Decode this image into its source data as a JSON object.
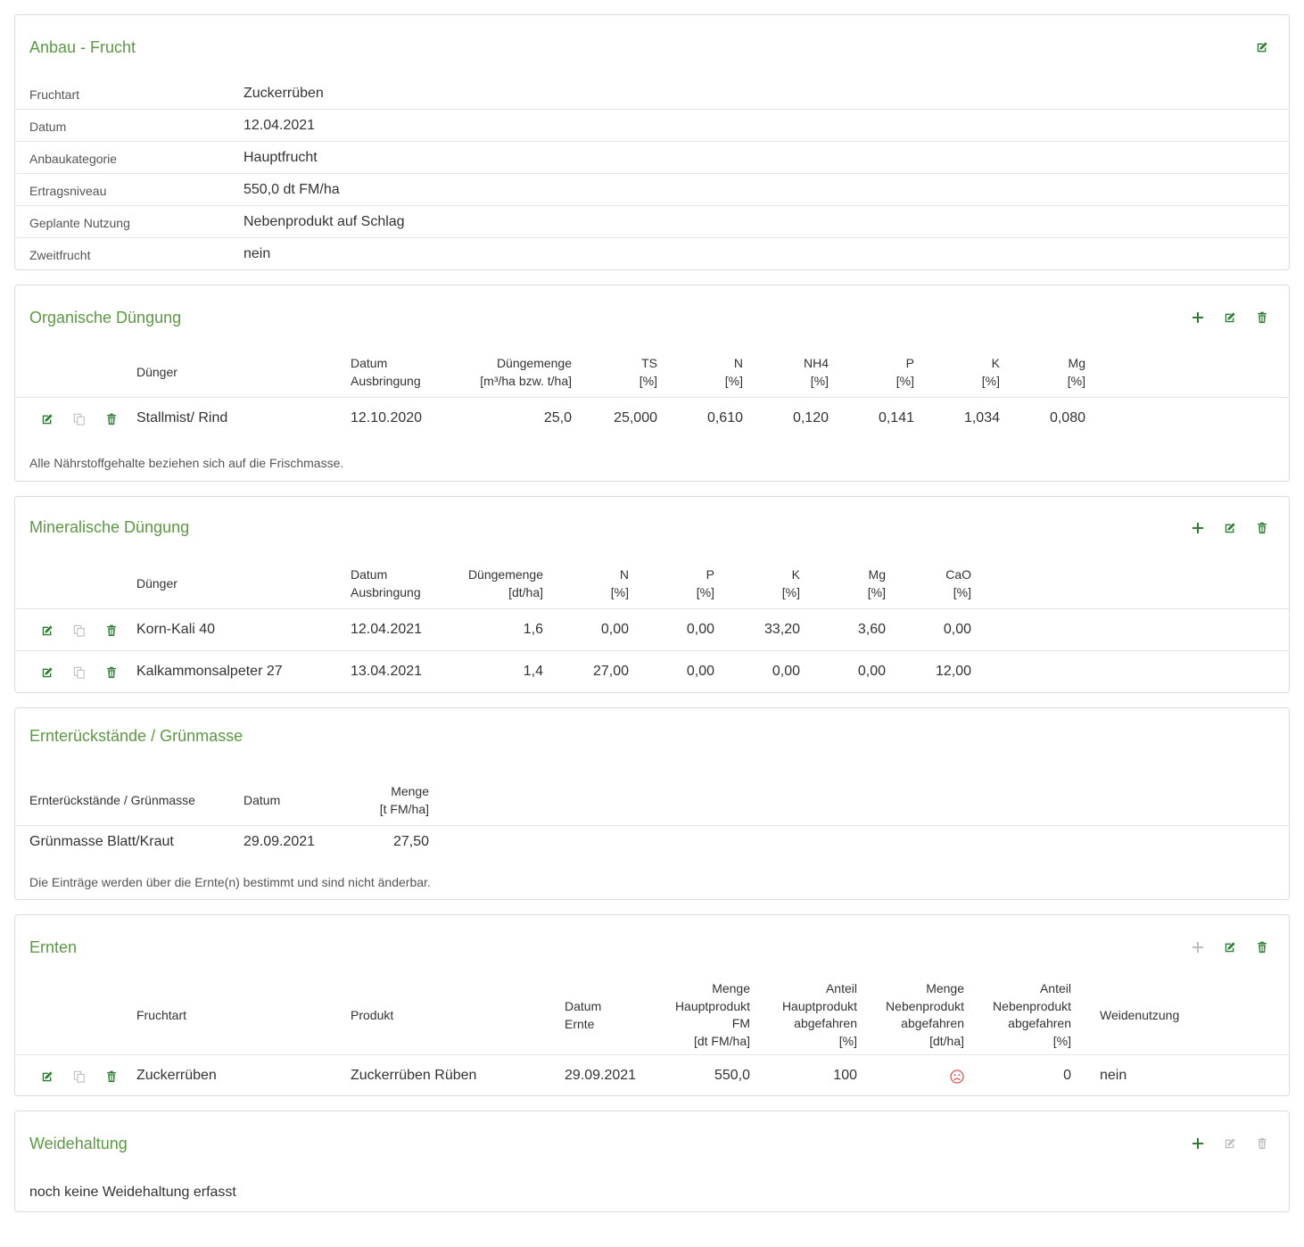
{
  "colors": {
    "accent": "#5a9a42",
    "icon": "#2e7d32",
    "icon_disabled": "#bdbdbd",
    "sad": "#e05555"
  },
  "anbau": {
    "title": "Anbau - Frucht",
    "rows": [
      {
        "label": "Fruchtart",
        "value": "Zuckerrüben"
      },
      {
        "label": "Datum",
        "value": "12.04.2021"
      },
      {
        "label": "Anbaukategorie",
        "value": "Hauptfrucht"
      },
      {
        "label": "Ertragsniveau",
        "value": "550,0 dt FM/ha"
      },
      {
        "label": "Geplante Nutzung",
        "value": "Nebenprodukt auf Schlag"
      },
      {
        "label": "Zweitfrucht",
        "value": "nein"
      }
    ]
  },
  "organisch": {
    "title": "Organische Düngung",
    "headers": {
      "duenger": "Dünger",
      "datum1": "Datum",
      "datum2": "Ausbringung",
      "menge1": "Düngemenge",
      "menge2": "[m³/ha bzw. t/ha]",
      "ts1": "TS",
      "ts2": "[%]",
      "n1": "N",
      "n2": "[%]",
      "nh41": "NH4",
      "nh42": "[%]",
      "p1": "P",
      "p2": "[%]",
      "k1": "K",
      "k2": "[%]",
      "mg1": "Mg",
      "mg2": "[%]"
    },
    "rows": [
      {
        "duenger": "Stallmist/ Rind",
        "datum": "12.10.2020",
        "menge": "25,0",
        "ts": "25,000",
        "n": "0,610",
        "nh4": "0,120",
        "p": "0,141",
        "k": "1,034",
        "mg": "0,080"
      }
    ],
    "note": "Alle Nährstoffgehalte beziehen sich auf die Frischmasse."
  },
  "mineralisch": {
    "title": "Mineralische Düngung",
    "headers": {
      "duenger": "Dünger",
      "datum1": "Datum",
      "datum2": "Ausbringung",
      "menge1": "Düngemenge",
      "menge2": "[dt/ha]",
      "n1": "N",
      "n2": "[%]",
      "p1": "P",
      "p2": "[%]",
      "k1": "K",
      "k2": "[%]",
      "mg1": "Mg",
      "mg2": "[%]",
      "cao1": "CaO",
      "cao2": "[%]"
    },
    "rows": [
      {
        "duenger": "Korn-Kali 40",
        "datum": "12.04.2021",
        "menge": "1,6",
        "n": "0,00",
        "p": "0,00",
        "k": "33,20",
        "mg": "3,60",
        "cao": "0,00"
      },
      {
        "duenger": "Kalkammonsalpeter 27",
        "datum": "13.04.2021",
        "menge": "1,4",
        "n": "27,00",
        "p": "0,00",
        "k": "0,00",
        "mg": "0,00",
        "cao": "12,00"
      }
    ]
  },
  "ernterueck": {
    "title": "Ernterückstände / Grünmasse",
    "headers": {
      "name": "Ernterückstände / Grünmasse",
      "datum": "Datum",
      "menge1": "Menge",
      "menge2": "[t FM/ha]"
    },
    "rows": [
      {
        "name": "Grünmasse Blatt/Kraut",
        "datum": "29.09.2021",
        "menge": "27,50"
      }
    ],
    "note": "Die Einträge werden über die Ernte(n) bestimmt und sind nicht änderbar."
  },
  "ernten": {
    "title": "Ernten",
    "headers": {
      "fruchtart": "Fruchtart",
      "produkt": "Produkt",
      "datum1": "Datum",
      "datum2": "Ernte",
      "mhp1": "Menge",
      "mhp2": "Hauptprodukt",
      "mhp3": "FM",
      "mhp4": "[dt FM/ha]",
      "ahp1": "Anteil",
      "ahp2": "Hauptprodukt",
      "ahp3": "abgefahren",
      "ahp4": "[%]",
      "mnp1": "Menge",
      "mnp2": "Nebenprodukt",
      "mnp3": "abgefahren",
      "mnp4": "[dt/ha]",
      "anp1": "Anteil",
      "anp2": "Nebenprodukt",
      "anp3": "abgefahren",
      "anp4": "[%]",
      "weide": "Weidenutzung"
    },
    "rows": [
      {
        "fruchtart": "Zuckerrüben",
        "produkt": "Zuckerrüben Rüben",
        "datum": "29.09.2021",
        "mhp": "550,0",
        "ahp": "100",
        "mnp_icon": "sad-face-icon",
        "anp": "0",
        "weide": "nein"
      }
    ]
  },
  "weide": {
    "title": "Weidehaltung",
    "empty": "noch keine Weidehaltung erfasst"
  }
}
